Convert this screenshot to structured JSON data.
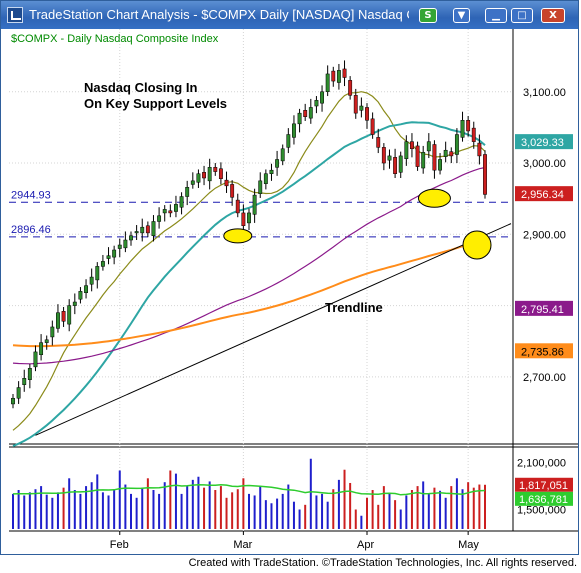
{
  "window": {
    "title": "TradeStation Chart Analysis - $COMPX Daily [NASDAQ] Nasdaq Co...",
    "buttons": {
      "symbol_link": "S",
      "dropdown": "▼",
      "minimize": "▁",
      "maximize": "□",
      "close": "X"
    }
  },
  "chart_data": {
    "type": "candlestick",
    "symbol_label": "$COMPX - Daily  Nasdaq Composite Index",
    "annotation": "Nasdaq Closing In\nOn Key Support Levels",
    "annotation_lines": [
      "Nasdaq Closing In",
      "On Key Support Levels"
    ],
    "trendline_label": "Trendline",
    "x_tick_labels": [
      "Feb",
      "Mar",
      "Apr",
      "May"
    ],
    "price_axis": {
      "ticks": [
        "3,100.00",
        "3,000.00",
        "2,900.00",
        "2,700.00"
      ],
      "ylim": [
        2610,
        3160
      ]
    },
    "volume_axis": {
      "ticks": [
        "2,100,000",
        "1,500,000"
      ],
      "ylim": [
        1250000,
        2250000
      ]
    },
    "support_levels": [
      {
        "label": "2944.93",
        "value": 2944.93
      },
      {
        "label": "2896.46",
        "value": 2896.46
      }
    ],
    "price_tags": [
      {
        "label": "3,029.33",
        "value": 3029.33,
        "color": "#2ea6a4"
      },
      {
        "label": "2,956.34",
        "value": 2956.34,
        "color": "#cc1f1f"
      },
      {
        "label": "2,795.41",
        "value": 2795.41,
        "color": "#8b1a8b"
      },
      {
        "label": "2,735.86",
        "value": 2735.86,
        "color": "#ff8c1a"
      }
    ],
    "volume_tags": [
      {
        "label": "1,817,051",
        "value": 1817051,
        "color": "#cc1f1f"
      },
      {
        "label": "1,636,781",
        "value": 1636781,
        "color": "#2ecc2e"
      }
    ],
    "candles_close": [
      2670,
      2685,
      2698,
      2712,
      2735,
      2748,
      2752,
      2770,
      2790,
      2778,
      2800,
      2805,
      2820,
      2828,
      2840,
      2855,
      2862,
      2870,
      2878,
      2885,
      2892,
      2898,
      2904,
      2910,
      2902,
      2918,
      2926,
      2935,
      2930,
      2942,
      2953,
      2966,
      2975,
      2985,
      2979,
      2994,
      2988,
      2978,
      2968,
      2952,
      2930,
      2912,
      2930,
      2955,
      2975,
      2985,
      2990,
      3005,
      3020,
      3040,
      3055,
      3070,
      3065,
      3078,
      3088,
      3100,
      3125,
      3115,
      3130,
      3120,
      3095,
      3070,
      3080,
      3060,
      3040,
      3022,
      3000,
      3010,
      2985,
      3010,
      3030,
      3020,
      2995,
      3015,
      3030,
      2990,
      3005,
      3018,
      3010,
      3040,
      3060,
      3045,
      3030,
      3010,
      2956
    ],
    "volume": [
      1700000,
      1750000,
      1680000,
      1720000,
      1760000,
      1800000,
      1690000,
      1650000,
      1720000,
      1780000,
      1900000,
      1750000,
      1700000,
      1800000,
      1850000,
      1950000,
      1720000,
      1680000,
      1760000,
      2000000,
      1820000,
      1700000,
      1650000,
      1780000,
      1900000,
      1750000,
      1700000,
      1850000,
      2000000,
      1960000,
      1700000,
      1800000,
      1880000,
      1920000,
      1780000,
      1860000,
      1750000,
      1800000,
      1650000,
      1720000,
      1760000,
      1900000,
      1700000,
      1680000,
      1800000,
      1620000,
      1580000,
      1640000,
      1700000,
      1820000,
      1600000,
      1500000,
      1560000,
      2150000,
      1680000,
      1700000,
      1600000,
      1760000,
      1880000,
      2010000,
      1840000,
      1500000,
      1420000,
      1650000,
      1750000,
      1560000,
      1800000,
      1700000,
      1620000,
      1500000,
      1680000,
      1750000,
      1800000,
      1860000,
      1700000,
      1780000,
      1740000,
      1650000,
      1800000,
      1900000,
      1760000,
      1850000,
      1780000,
      1820000,
      1817051
    ]
  },
  "footer": "Created with TradeStation. ©TradeStation Technologies, Inc. All rights reserved."
}
